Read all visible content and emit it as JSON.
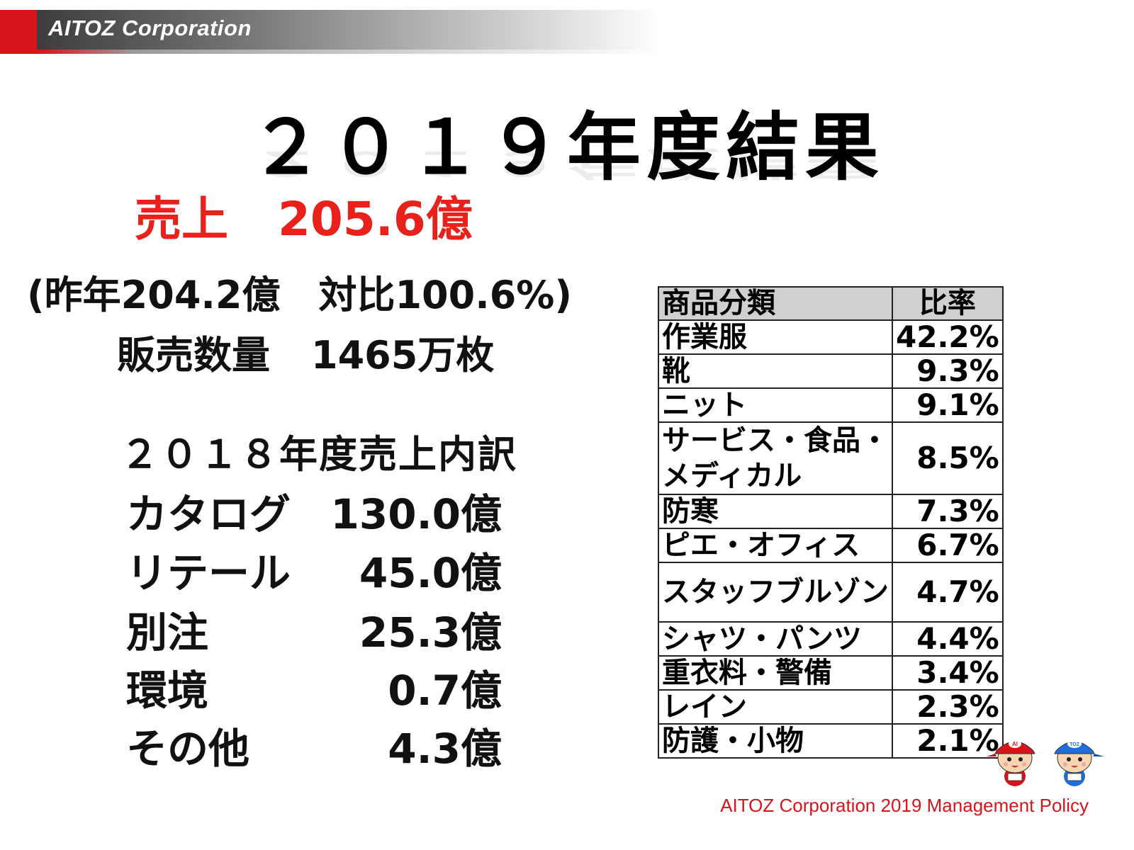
{
  "header": {
    "brand": "AITOZ Corporation",
    "accent_color": "#d8141b"
  },
  "title": "２０１９年度結果",
  "sales": {
    "label": "売上",
    "value": "205.6億"
  },
  "previous_year": "(昨年204.2億　対比100.6%)",
  "quantity": {
    "label": "販売数量",
    "value": "1465万枚"
  },
  "breakdown": {
    "title": "２０１８年度売上内訳",
    "rows": [
      {
        "label": "カタログ",
        "value": "130.0億"
      },
      {
        "label": "リテール",
        "value": "45.0億"
      },
      {
        "label": "別注",
        "value": "25.3億"
      },
      {
        "label": "環境",
        "value": "0.7億"
      },
      {
        "label": "その他",
        "value": "4.3億"
      }
    ]
  },
  "table": {
    "headers": [
      "商品分類",
      "比率"
    ],
    "rows": [
      {
        "category": "作業服",
        "ratio": "42.2%"
      },
      {
        "category": "靴",
        "ratio": "9.3%"
      },
      {
        "category": "ニット",
        "ratio": "9.1%"
      },
      {
        "category": "サービス・食品・メディカル",
        "ratio": "8.5%"
      },
      {
        "category": "防寒",
        "ratio": "7.3%"
      },
      {
        "category": "ピエ・オフィス",
        "ratio": "6.7%"
      },
      {
        "category": "スタッフブルゾン",
        "ratio": "4.7%"
      },
      {
        "category": "シャツ・パンツ",
        "ratio": "4.4%"
      },
      {
        "category": "重衣料・警備",
        "ratio": "3.4%"
      },
      {
        "category": "レイン",
        "ratio": "2.3%"
      },
      {
        "category": "防護・小物",
        "ratio": "2.1%"
      }
    ]
  },
  "mascots": {
    "red_cap": "AI",
    "blue_cap": "TOZ"
  },
  "footer": "AITOZ Corporation 2019 Management Policy"
}
